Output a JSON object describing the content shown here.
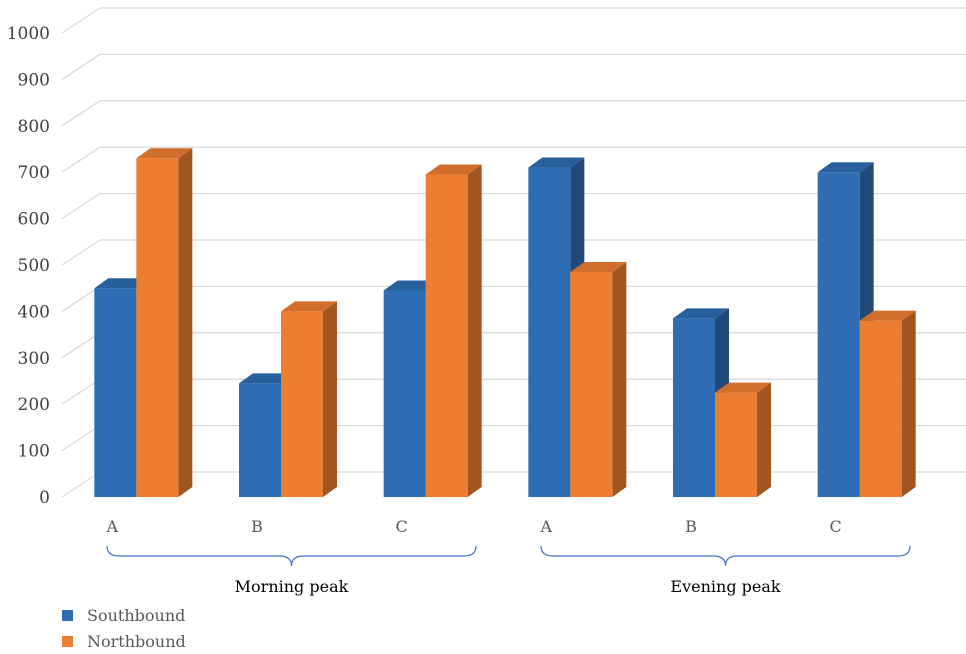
{
  "chart_data": {
    "type": "bar",
    "style": "3d-clustered-column",
    "title": "",
    "xlabel": "",
    "ylabel": "",
    "ylim": [
      0,
      1000
    ],
    "yticks": [
      0,
      100,
      200,
      300,
      400,
      500,
      600,
      700,
      800,
      900,
      1000
    ],
    "grid": true,
    "legend_position": "bottom-left",
    "groups": [
      {
        "label": "Morning peak",
        "categories": [
          "A",
          "B",
          "C"
        ]
      },
      {
        "label": "Evening peak",
        "categories": [
          "A",
          "B",
          "C"
        ]
      }
    ],
    "categories": [
      "A",
      "B",
      "C",
      "A",
      "B",
      "C"
    ],
    "series": [
      {
        "name": "Southbound",
        "color": "#2E6DB4",
        "values": [
          450,
          245,
          445,
          710,
          385,
          700
        ]
      },
      {
        "name": "Northbound",
        "color": "#ED7D31",
        "values": [
          730,
          400,
          695,
          485,
          225,
          380
        ]
      }
    ]
  }
}
